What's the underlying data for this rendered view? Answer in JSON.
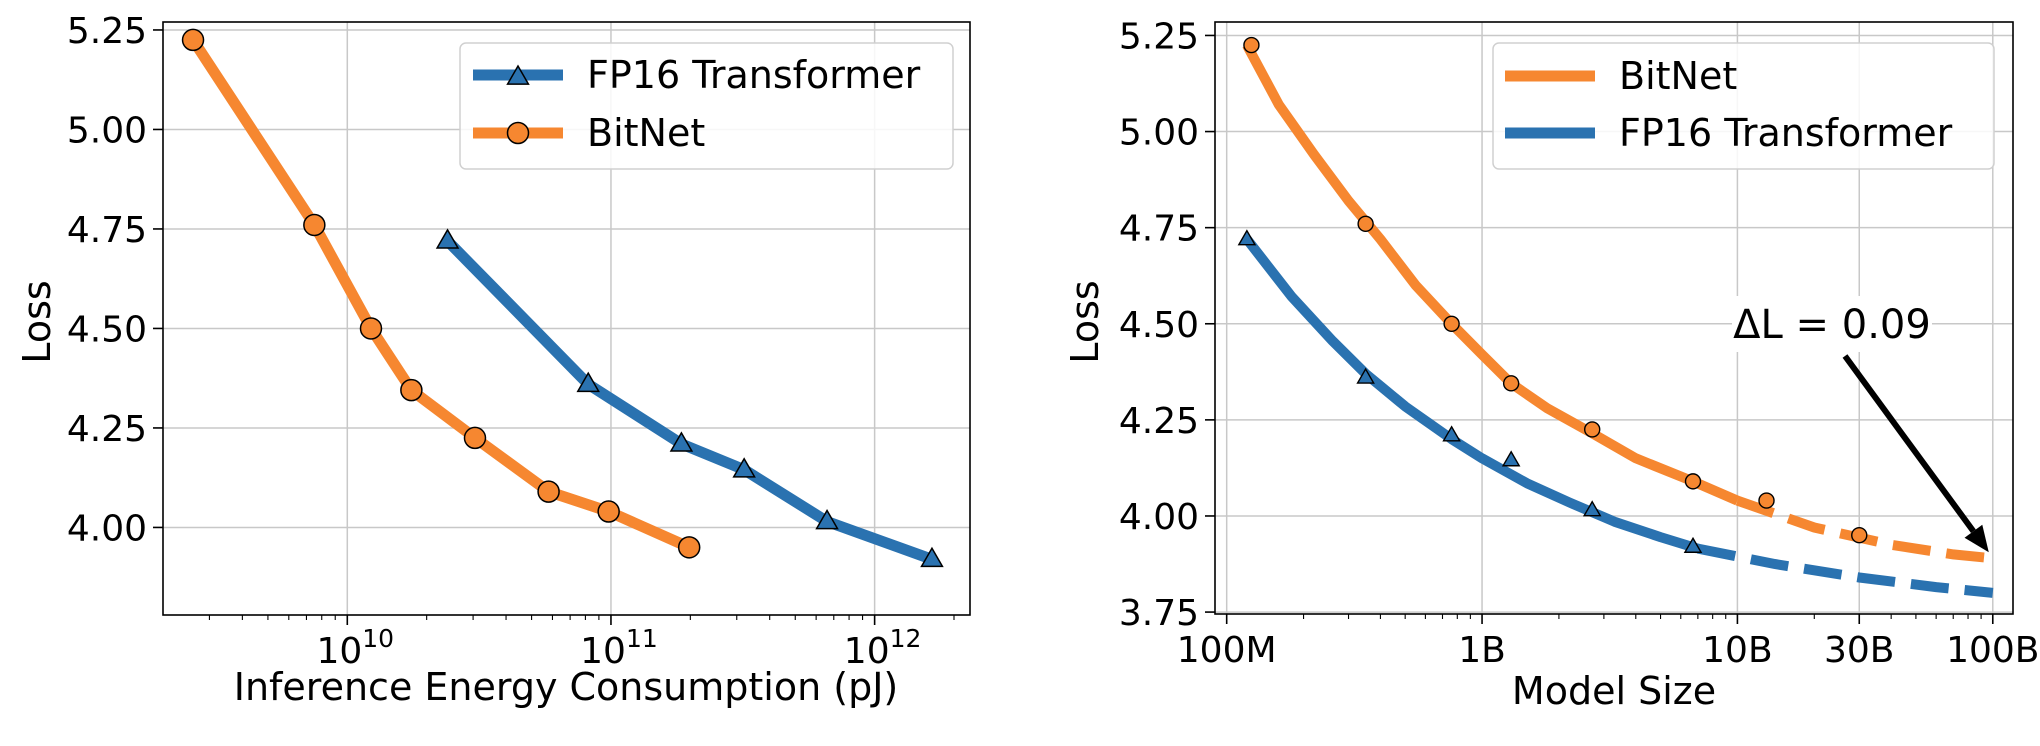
{
  "colors": {
    "fp16": "#2a72b0",
    "bitnet": "#f68730",
    "grid": "#c8c8c8",
    "axis": "#000000"
  },
  "chart_data": [
    {
      "type": "line",
      "x_scale": "log",
      "xlabel": "Inference Energy Consumption (pJ)",
      "ylabel": "Loss",
      "xlim": [
        2000000000,
        2300000000000
      ],
      "ylim": [
        3.78,
        5.27
      ],
      "grid": true,
      "legend_position": "top-right",
      "x_ticks": [
        10000000000,
        100000000000,
        1000000000000
      ],
      "x_tick_labels": [
        {
          "base": "10",
          "exp": "10"
        },
        {
          "base": "10",
          "exp": "11"
        },
        {
          "base": "10",
          "exp": "12"
        }
      ],
      "y_ticks": [
        4.0,
        4.25,
        4.5,
        4.75,
        5.0,
        5.25
      ],
      "y_tick_labels": [
        "4.00",
        "4.25",
        "4.50",
        "4.75",
        "5.00",
        "5.25"
      ],
      "series": [
        {
          "name": "FP16 Transformer",
          "color_key": "fp16",
          "marker": "triangle",
          "x": [
            24000000000,
            82000000000,
            185000000000,
            320000000000,
            660000000000,
            1650000000000
          ],
          "y": [
            4.72,
            4.36,
            4.21,
            4.145,
            4.015,
            3.92
          ]
        },
        {
          "name": "BitNet",
          "color_key": "bitnet",
          "marker": "circle",
          "x": [
            2600000000,
            7500000000,
            12300000000,
            17500000000,
            30500000000,
            58000000000,
            98000000000,
            198000000000
          ],
          "y": [
            5.225,
            4.76,
            4.5,
            4.345,
            4.225,
            4.09,
            4.04,
            3.95
          ]
        }
      ]
    },
    {
      "type": "line",
      "x_scale": "log",
      "xlabel": "Model Size",
      "ylabel": "Loss",
      "xlim": [
        90000000,
        120000000000
      ],
      "ylim": [
        3.745,
        5.285
      ],
      "grid": true,
      "legend_position": "top-right",
      "x_ticks": [
        100000000,
        1000000000,
        10000000000,
        30000000000,
        100000000000
      ],
      "x_tick_labels": [
        "100M",
        "1B",
        "10B",
        "30B",
        "100B"
      ],
      "y_ticks": [
        3.75,
        4.0,
        4.25,
        4.5,
        4.75,
        5.0,
        5.25
      ],
      "y_tick_labels": [
        "3.75",
        "4.00",
        "4.25",
        "4.50",
        "4.75",
        "5.00",
        "5.25"
      ],
      "annotation": {
        "text": "ΔL = 0.09",
        "arrow_target": {
          "x": 100000000000,
          "y": 3.89
        }
      },
      "series": [
        {
          "name": "BitNet",
          "color_key": "bitnet",
          "points": {
            "x": [
              125000000,
              350000000,
              760000000,
              1300000000,
              2700000000,
              6700000000,
              13000000000,
              30000000000
            ],
            "y": [
              5.225,
              4.76,
              4.5,
              4.345,
              4.225,
              4.09,
              4.04,
              3.95
            ]
          },
          "curve_solid": {
            "x": [
              120000000,
              160000000,
              220000000,
              300000000,
              400000000,
              550000000,
              760000000,
              1000000000,
              1300000000,
              1800000000,
              2700000000,
              4000000000,
              6700000000,
              10000000000
            ],
            "y": [
              5.225,
              5.07,
              4.94,
              4.82,
              4.72,
              4.6,
              4.5,
              4.42,
              4.345,
              4.28,
              4.215,
              4.15,
              4.09,
              4.04
            ]
          },
          "curve_dashed": {
            "x": [
              10000000000,
              20000000000,
              40000000000,
              70000000000,
              100000000000
            ],
            "y": [
              4.04,
              3.97,
              3.925,
              3.9,
              3.89
            ]
          }
        },
        {
          "name": "FP16 Transformer",
          "color_key": "fp16",
          "points": {
            "x": [
              120000000,
              350000000,
              760000000,
              1300000000,
              2700000000,
              6700000000
            ],
            "y": [
              4.72,
              4.36,
              4.21,
              4.145,
              4.015,
              3.92
            ]
          },
          "curve_solid": {
            "x": [
              120000000,
              180000000,
              260000000,
              350000000,
              500000000,
              760000000,
              1000000000,
              1500000000,
              2200000000,
              3300000000,
              5000000000,
              7000000000
            ],
            "y": [
              4.72,
              4.57,
              4.455,
              4.37,
              4.285,
              4.2,
              4.15,
              4.085,
              4.035,
              3.985,
              3.945,
              3.915
            ]
          },
          "curve_dashed": {
            "x": [
              7000000000,
              14000000000,
              30000000000,
              60000000000,
              100000000000
            ],
            "y": [
              3.915,
              3.875,
              3.84,
              3.815,
              3.8
            ]
          }
        }
      ]
    }
  ]
}
